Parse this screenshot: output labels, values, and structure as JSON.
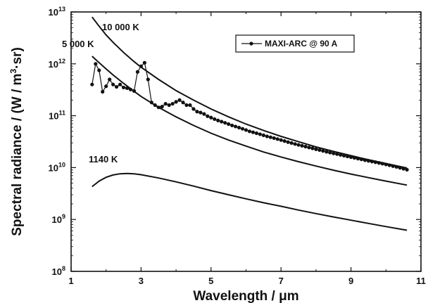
{
  "chart_data": {
    "type": "line",
    "title": "",
    "xlabel": "Wavelength / μm",
    "ylabel_parts": [
      "Spectral radiance / (W / m",
      "3",
      "·sr)"
    ],
    "xlim": [
      1,
      11
    ],
    "ylim": [
      100000000.0,
      10000000000000.0
    ],
    "yscale": "log",
    "xticks": [
      1,
      3,
      5,
      7,
      9,
      11
    ],
    "xtick_labels": [
      "1",
      "3",
      "5",
      "7",
      "9",
      "11"
    ],
    "yticks": [
      100000000.0,
      1000000000.0,
      10000000000.0,
      100000000000.0,
      1000000000000.0,
      10000000000000.0
    ],
    "ytick_labels": [
      {
        "base": "10",
        "exp": "8"
      },
      {
        "base": "10",
        "exp": "9"
      },
      {
        "base": "10",
        "exp": "10"
      },
      {
        "base": "10",
        "exp": "11"
      },
      {
        "base": "10",
        "exp": "12"
      },
      {
        "base": "10",
        "exp": "13"
      }
    ],
    "grid": false,
    "legend_position": "top-right",
    "series": [
      {
        "name": "MAXI-ARC @ 90 A",
        "style": "line-markers",
        "color": "#111111",
        "x": [
          1.6,
          1.7,
          1.8,
          1.9,
          2.0,
          2.1,
          2.2,
          2.3,
          2.4,
          2.5,
          2.6,
          2.7,
          2.8,
          2.9,
          3.0,
          3.1,
          3.2,
          3.3,
          3.4,
          3.5,
          3.6,
          3.7,
          3.8,
          3.9,
          4.0,
          4.1,
          4.2,
          4.3,
          4.4,
          4.5,
          4.6,
          4.7,
          4.8,
          4.9,
          5.0,
          5.1,
          5.2,
          5.3,
          5.4,
          5.5,
          5.6,
          5.7,
          5.8,
          5.9,
          6.0,
          6.1,
          6.2,
          6.3,
          6.4,
          6.5,
          6.6,
          6.7,
          6.8,
          6.9,
          7.0,
          7.1,
          7.2,
          7.3,
          7.4,
          7.5,
          7.6,
          7.7,
          7.8,
          7.9,
          8.0,
          8.1,
          8.2,
          8.3,
          8.4,
          8.5,
          8.6,
          8.7,
          8.8,
          8.9,
          9.0,
          9.1,
          9.2,
          9.3,
          9.4,
          9.5,
          9.6,
          9.7,
          9.8,
          9.9,
          10.0,
          10.1,
          10.2,
          10.3,
          10.4,
          10.5,
          10.6
        ],
        "y": [
          400000000000.0,
          1000000000000.0,
          750000000000.0,
          290000000000.0,
          370000000000.0,
          500000000000.0,
          400000000000.0,
          360000000000.0,
          400000000000.0,
          350000000000.0,
          340000000000.0,
          320000000000.0,
          300000000000.0,
          700000000000.0,
          900000000000.0,
          1050000000000.0,
          500000000000.0,
          180000000000.0,
          160000000000.0,
          145000000000.0,
          150000000000.0,
          170000000000.0,
          160000000000.0,
          170000000000.0,
          185000000000.0,
          200000000000.0,
          180000000000.0,
          160000000000.0,
          160000000000.0,
          135000000000.0,
          120000000000.0,
          115000000000.0,
          108000000000.0,
          98000000000.0,
          92000000000.0,
          86000000000.0,
          81000000000.0,
          77000000000.0,
          73000000000.0,
          69000000000.0,
          65000000000.0,
          62000000000.0,
          59000000000.0,
          56000000000.0,
          53000000000.0,
          50000000000.0,
          48000000000.0,
          46000000000.0,
          44000000000.0,
          42000000000.0,
          40000000000.0,
          38500000000.0,
          37000000000.0,
          35500000000.0,
          34000000000.0,
          32500000000.0,
          31000000000.0,
          29800000000.0,
          28500000000.0,
          27400000000.0,
          26400000000.0,
          25400000000.0,
          24400000000.0,
          23500000000.0,
          22600000000.0,
          21800000000.0,
          21000000000.0,
          20200000000.0,
          19500000000.0,
          18800000000.0,
          18200000000.0,
          17600000000.0,
          17000000000.0,
          16400000000.0,
          15900000000.0,
          15400000000.0,
          14900000000.0,
          14400000000.0,
          13900000000.0,
          13500000000.0,
          13100000000.0,
          12700000000.0,
          12300000000.0,
          11900000000.0,
          11500000000.0,
          11100000000.0,
          10700000000.0,
          10300000000.0,
          9900000000.0,
          9500000000.0,
          9100000000.0
        ]
      },
      {
        "name": "10 000 K",
        "style": "line",
        "color": "#111111",
        "x": [
          1.6,
          1.8,
          2.0,
          2.2,
          2.5,
          2.8,
          3.0,
          3.5,
          4.0,
          4.5,
          5.0,
          5.5,
          6.0,
          6.5,
          7.0,
          7.5,
          8.0,
          8.5,
          9.0,
          9.5,
          10.0,
          10.6
        ],
        "y": [
          8000000000000.0,
          5300000000000.0,
          3600000000000.0,
          2600000000000.0,
          1650000000000.0,
          1100000000000.0,
          860000000000.0,
          500000000000.0,
          305000000000.0,
          200000000000.0,
          135000000000.0,
          95000000000.0,
          69000000000.0,
          52000000000.0,
          40000000000.0,
          31500000000.0,
          25000000000.0,
          20500000000.0,
          17000000000.0,
          14200000000.0,
          12000000000.0,
          9800000000.0
        ]
      },
      {
        "name": "5 000 K",
        "style": "line",
        "color": "#111111",
        "x": [
          1.6,
          1.8,
          2.0,
          2.2,
          2.5,
          2.8,
          3.0,
          3.5,
          4.0,
          4.5,
          5.0,
          5.5,
          6.0,
          6.5,
          7.0,
          7.5,
          8.0,
          8.5,
          9.0,
          9.5,
          10.0,
          10.6
        ],
        "y": [
          1400000000000.0,
          1050000000000.0,
          800000000000.0,
          610000000000.0,
          420000000000.0,
          295000000000.0,
          235000000000.0,
          145000000000.0,
          95000000000.0,
          65000000000.0,
          46000000000.0,
          34000000000.0,
          26000000000.0,
          20000000000.0,
          16000000000.0,
          13000000000.0,
          10700000000.0,
          8900000000.0,
          7500000000.0,
          6400000000.0,
          5500000000.0,
          4600000000.0
        ]
      },
      {
        "name": "1140 K",
        "style": "line",
        "color": "#111111",
        "x": [
          1.6,
          1.8,
          2.0,
          2.2,
          2.4,
          2.6,
          2.8,
          3.0,
          3.5,
          4.0,
          4.5,
          5.0,
          5.5,
          6.0,
          6.5,
          7.0,
          7.5,
          8.0,
          8.5,
          9.0,
          9.5,
          10.0,
          10.6
        ],
        "y": [
          4300000000.0,
          5500000000.0,
          6500000000.0,
          7200000000.0,
          7600000000.0,
          7700000000.0,
          7600000000.0,
          7300000000.0,
          6300000000.0,
          5300000000.0,
          4400000000.0,
          3600000000.0,
          3000000000.0,
          2500000000.0,
          2100000000.0,
          1800000000.0,
          1520000000.0,
          1300000000.0,
          1120000000.0,
          970000000.0,
          840000000.0,
          730000000.0,
          620000000.0
        ]
      }
    ],
    "curve_labels": [
      {
        "text": "10 000 K",
        "series": "10 000 K"
      },
      {
        "text": "5 000 K",
        "series": "5 000 K"
      },
      {
        "text": "1140 K",
        "series": "1140 K"
      }
    ],
    "legend": {
      "label": "MAXI-ARC @ 90 A"
    }
  }
}
